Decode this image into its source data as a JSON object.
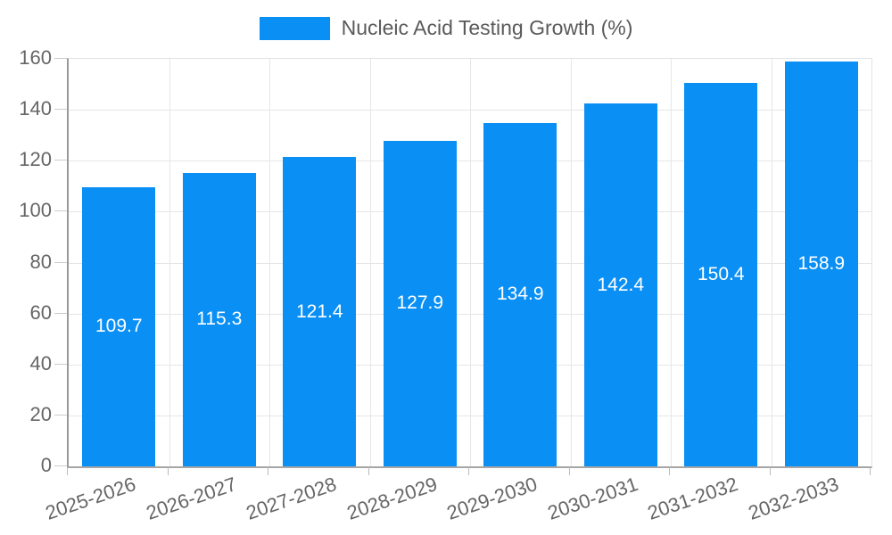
{
  "chart_data": {
    "type": "bar",
    "title": "Nucleic Acid Testing Growth (%)",
    "categories": [
      "2025-2026",
      "2026-2027",
      "2027-2028",
      "2028-2029",
      "2029-2030",
      "2030-2031",
      "2031-2032",
      "2032-2033"
    ],
    "values": [
      109.7,
      115.3,
      121.4,
      127.9,
      134.9,
      142.4,
      150.4,
      158.9
    ],
    "xlabel": "",
    "ylabel": "",
    "ylim": [
      0,
      160
    ],
    "yticks": [
      0,
      20,
      40,
      60,
      80,
      100,
      120,
      140,
      160
    ],
    "grid": true,
    "legend_position": "top-center",
    "value_labels_inside_bars": true,
    "colors": {
      "bar": "#0a8ff5",
      "value_label": "#ffffff",
      "tick_label": "#666666",
      "legend_text": "#5a5a5a",
      "axis_line": "#999999",
      "gridline": "#e6e6e6",
      "background": "#ffffff"
    }
  }
}
